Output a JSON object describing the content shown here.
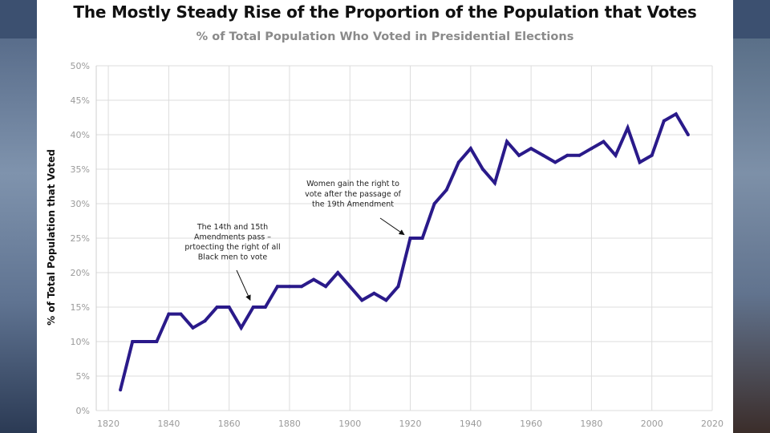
{
  "chart_data": {
    "type": "line",
    "title": "The Mostly Steady Rise of the Proportion of the Population that Votes",
    "subtitle": "% of Total Population Who Voted in Presidential Elections",
    "xlabel": "",
    "ylabel": "% of Total Population that Voted",
    "xlim": [
      1816,
      2020
    ],
    "ylim": [
      0,
      50
    ],
    "x_ticks": [
      1820,
      1840,
      1860,
      1880,
      1900,
      1920,
      1940,
      1960,
      1980,
      2000,
      2020
    ],
    "x_tick_labels": [
      "1820",
      "1840",
      "1860",
      "1880",
      "1900",
      "1920",
      "1940",
      "1960",
      "1980",
      "2000",
      "2020"
    ],
    "y_ticks": [
      0,
      5,
      10,
      15,
      20,
      25,
      30,
      35,
      40,
      45,
      50
    ],
    "y_tick_labels": [
      "0%",
      "5%",
      "10%",
      "15%",
      "20%",
      "25%",
      "30%",
      "35%",
      "40%",
      "45%",
      "50%"
    ],
    "grid": true,
    "series": [
      {
        "name": "% of Total Population that Voted",
        "color": "#2a1a8a",
        "x": [
          1824,
          1828,
          1832,
          1836,
          1840,
          1844,
          1848,
          1852,
          1856,
          1860,
          1864,
          1868,
          1872,
          1876,
          1880,
          1884,
          1888,
          1892,
          1896,
          1900,
          1904,
          1908,
          1912,
          1916,
          1920,
          1924,
          1928,
          1932,
          1936,
          1940,
          1944,
          1948,
          1952,
          1956,
          1960,
          1964,
          1968,
          1972,
          1976,
          1980,
          1984,
          1988,
          1992,
          1996,
          2000,
          2004,
          2008,
          2012
        ],
        "values": [
          3,
          10,
          10,
          10,
          14,
          14,
          12,
          13,
          15,
          15,
          12,
          15,
          15,
          18,
          18,
          18,
          19,
          18,
          20,
          18,
          16,
          17,
          16,
          18,
          25,
          25,
          30,
          32,
          36,
          38,
          35,
          33,
          39,
          37,
          38,
          37,
          36,
          37,
          37,
          38,
          39,
          37,
          41,
          36,
          37,
          42,
          43,
          40
        ]
      }
    ],
    "annotations": [
      {
        "lines": [
          "The 14th and 15th",
          "Amendments pass –",
          "prtoecting the right of all",
          "Black men to vote"
        ],
        "points_to": {
          "x": 1867,
          "y": 16
        }
      },
      {
        "lines": [
          "Women gain the right to",
          "vote after the passage of",
          "the 19th Amendment"
        ],
        "points_to": {
          "x": 1918,
          "y": 25.5
        }
      }
    ]
  }
}
